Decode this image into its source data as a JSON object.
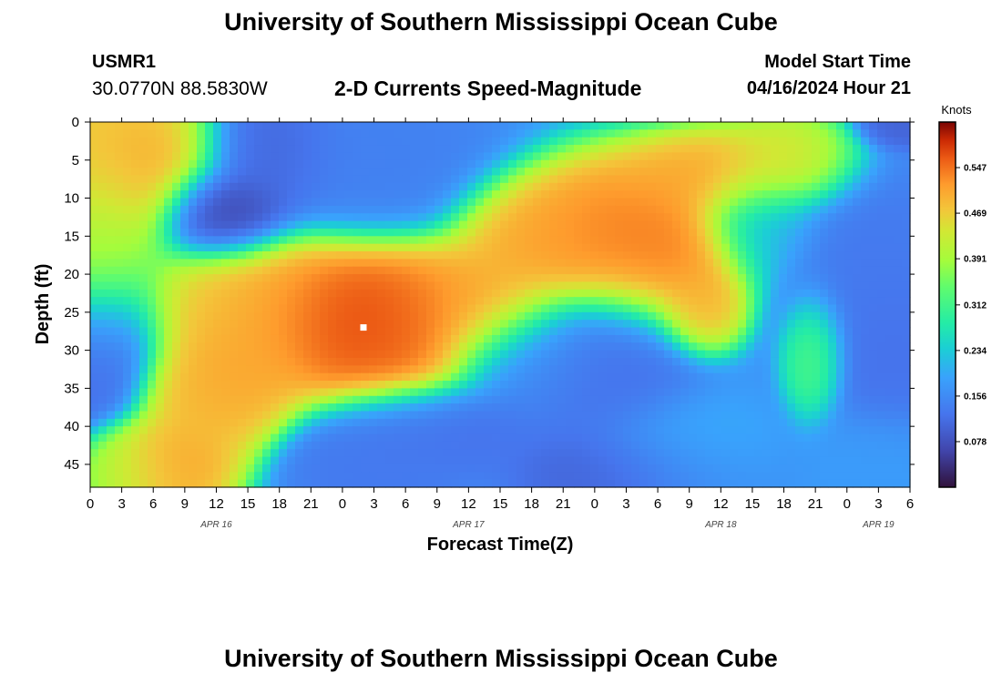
{
  "header": {
    "title": "University of Southern Mississippi Ocean Cube",
    "station": "USMR1",
    "coordinates": "30.0770N  88.5830W",
    "subtitle": "2-D Currents Speed-Magnitude",
    "model_start_label": "Model Start Time",
    "model_start_value": "04/16/2024 Hour 21"
  },
  "footer": {
    "title": "University of Southern Mississippi Ocean Cube"
  },
  "chart_data": {
    "type": "heatmap",
    "xlabel": "Forecast Time(Z)",
    "ylabel": "Depth (ft)",
    "x_ticks": [
      "0",
      "3",
      "6",
      "9",
      "12",
      "15",
      "18",
      "21",
      "0",
      "3",
      "6",
      "9",
      "12",
      "15",
      "18",
      "21",
      "0",
      "3",
      "6",
      "9",
      "12",
      "15",
      "18",
      "21",
      "0",
      "3",
      "6"
    ],
    "date_labels": [
      {
        "text": "APR 16",
        "hour": 12
      },
      {
        "text": "APR 17",
        "hour": 36
      },
      {
        "text": "APR 18",
        "hour": 60
      },
      {
        "text": "APR 19",
        "hour": 75
      }
    ],
    "y_ticks": [
      0,
      5,
      10,
      15,
      20,
      25,
      30,
      35,
      40,
      45
    ],
    "y_range": [
      0,
      48
    ],
    "x_range_hours": [
      0,
      78
    ],
    "colorbar": {
      "label": "Knots",
      "ticks": [
        0.547,
        0.469,
        0.391,
        0.312,
        0.234,
        0.156,
        0.078
      ],
      "range": [
        0,
        0.625
      ]
    },
    "marker": {
      "hour": 26,
      "depth": 27
    },
    "grid": false,
    "features": [
      {
        "hour": 2,
        "depth": 5,
        "value": 0.52,
        "sh": 5,
        "sd": 5
      },
      {
        "hour": 0,
        "depth": 15,
        "value": 0.4,
        "sh": 3,
        "sd": 8
      },
      {
        "hour": 0,
        "depth": 30,
        "value": 0.1,
        "sh": 3,
        "sd": 5
      },
      {
        "hour": 13,
        "depth": 12,
        "value": 0.05,
        "sh": 3,
        "sd": 3
      },
      {
        "hour": 17.5,
        "depth": 4,
        "value": 0.1,
        "sh": 3,
        "sd": 4
      },
      {
        "hour": 26,
        "depth": 5,
        "value": 0.14,
        "sh": 6,
        "sd": 5
      },
      {
        "hour": 16,
        "depth": 25,
        "value": 0.5,
        "sh": 5,
        "sd": 5
      },
      {
        "hour": 24,
        "depth": 26,
        "value": 0.6,
        "sh": 5,
        "sd": 5
      },
      {
        "hour": 30,
        "depth": 27,
        "value": 0.56,
        "sh": 4,
        "sd": 5
      },
      {
        "hour": 11,
        "depth": 37,
        "value": 0.5,
        "sh": 3,
        "sd": 4
      },
      {
        "hour": 4,
        "depth": 46,
        "value": 0.4,
        "sh": 2.5,
        "sd": 3
      },
      {
        "hour": 7,
        "depth": 46,
        "value": 0.5,
        "sh": 2.5,
        "sd": 3
      },
      {
        "hour": 8,
        "depth": 45,
        "value": 0.52,
        "sh": 3,
        "sd": 3
      },
      {
        "hour": 14,
        "depth": 33,
        "value": 0.52,
        "sh": 3,
        "sd": 4
      },
      {
        "hour": 37,
        "depth": 24,
        "value": 0.52,
        "sh": 4,
        "sd": 4
      },
      {
        "hour": 43,
        "depth": 15,
        "value": 0.52,
        "sh": 4,
        "sd": 4
      },
      {
        "hour": 49,
        "depth": 15,
        "value": 0.55,
        "sh": 4,
        "sd": 5
      },
      {
        "hour": 55,
        "depth": 17,
        "value": 0.55,
        "sh": 4,
        "sd": 5
      },
      {
        "hour": 58,
        "depth": 24,
        "value": 0.5,
        "sh": 2,
        "sd": 3
      },
      {
        "hour": 60,
        "depth": 7,
        "value": 0.52,
        "sh": 5,
        "sd": 3
      },
      {
        "hour": 67,
        "depth": 5,
        "value": 0.45,
        "sh": 3,
        "sd": 3
      },
      {
        "hour": 69,
        "depth": 30,
        "value": 0.34,
        "sh": 1.5,
        "sd": 4
      },
      {
        "hour": 33,
        "depth": 40,
        "value": 0.12,
        "sh": 5,
        "sd": 3
      },
      {
        "hour": 27,
        "depth": 45,
        "value": 0.13,
        "sh": 4,
        "sd": 3
      },
      {
        "hour": 42,
        "depth": 31,
        "value": 0.15,
        "sh": 4,
        "sd": 4
      },
      {
        "hour": 50,
        "depth": 33,
        "value": 0.12,
        "sh": 4,
        "sd": 6
      },
      {
        "hour": 56,
        "depth": 43,
        "value": 0.2,
        "sh": 4,
        "sd": 4
      },
      {
        "hour": 51,
        "depth": 46,
        "value": 0.1,
        "sh": 5,
        "sd": 3
      },
      {
        "hour": 73,
        "depth": 18,
        "value": 0.13,
        "sh": 4,
        "sd": 7
      },
      {
        "hour": 76,
        "depth": 30,
        "value": 0.12,
        "sh": 3,
        "sd": 6
      },
      {
        "hour": 75,
        "depth": 45,
        "value": 0.18,
        "sh": 3,
        "sd": 4
      },
      {
        "hour": 77,
        "depth": 0.5,
        "value": 0.1,
        "sh": 2,
        "sd": 1.5
      },
      {
        "hour": 64,
        "depth": 13,
        "value": 0.22,
        "sh": 3,
        "sd": 4
      }
    ],
    "background_value": 0.17
  }
}
